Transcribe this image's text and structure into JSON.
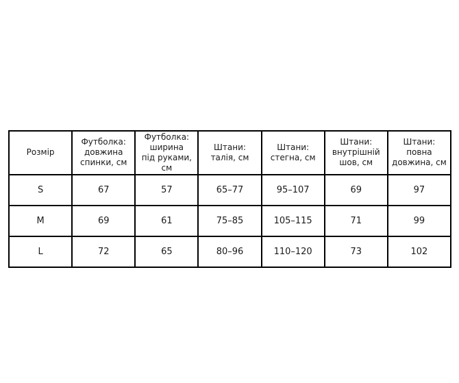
{
  "colors": {
    "background": "#ffffff",
    "border": "#000000",
    "text": "#1a1a1a"
  },
  "table": {
    "display_headers": [
      "Розмір",
      "Футболка:\nдовжина\nспинки, см",
      "Футболка:\nширина\nпід руками, см",
      "Штани:\nталія, см",
      "Штани:\nстегна, см",
      "Штани:\nвнутрішній\nшов, см",
      "Штани:\nповна\nдовжина, см"
    ],
    "rows": [
      [
        "S",
        "67",
        "57",
        "65–77",
        "95–107",
        "69",
        "97"
      ],
      [
        "M",
        "69",
        "61",
        "75–85",
        "105–115",
        "71",
        "99"
      ],
      [
        "L",
        "72",
        "65",
        "80–96",
        "110–120",
        "73",
        "102"
      ]
    ]
  },
  "chart_data": {
    "type": "table",
    "title": "",
    "columns": [
      "Розмір",
      "Футболка: довжина спинки, см",
      "Футболка: ширина під руками, см",
      "Штани: талія, см",
      "Штани: стегна, см",
      "Штани: внутрішній шов, см",
      "Штани: повна довжина, см"
    ],
    "rows": [
      [
        "S",
        "67",
        "57",
        "65–77",
        "95–107",
        "69",
        "97"
      ],
      [
        "M",
        "69",
        "61",
        "75–85",
        "105–115",
        "71",
        "99"
      ],
      [
        "L",
        "72",
        "65",
        "80–96",
        "110–120",
        "73",
        "102"
      ]
    ]
  }
}
